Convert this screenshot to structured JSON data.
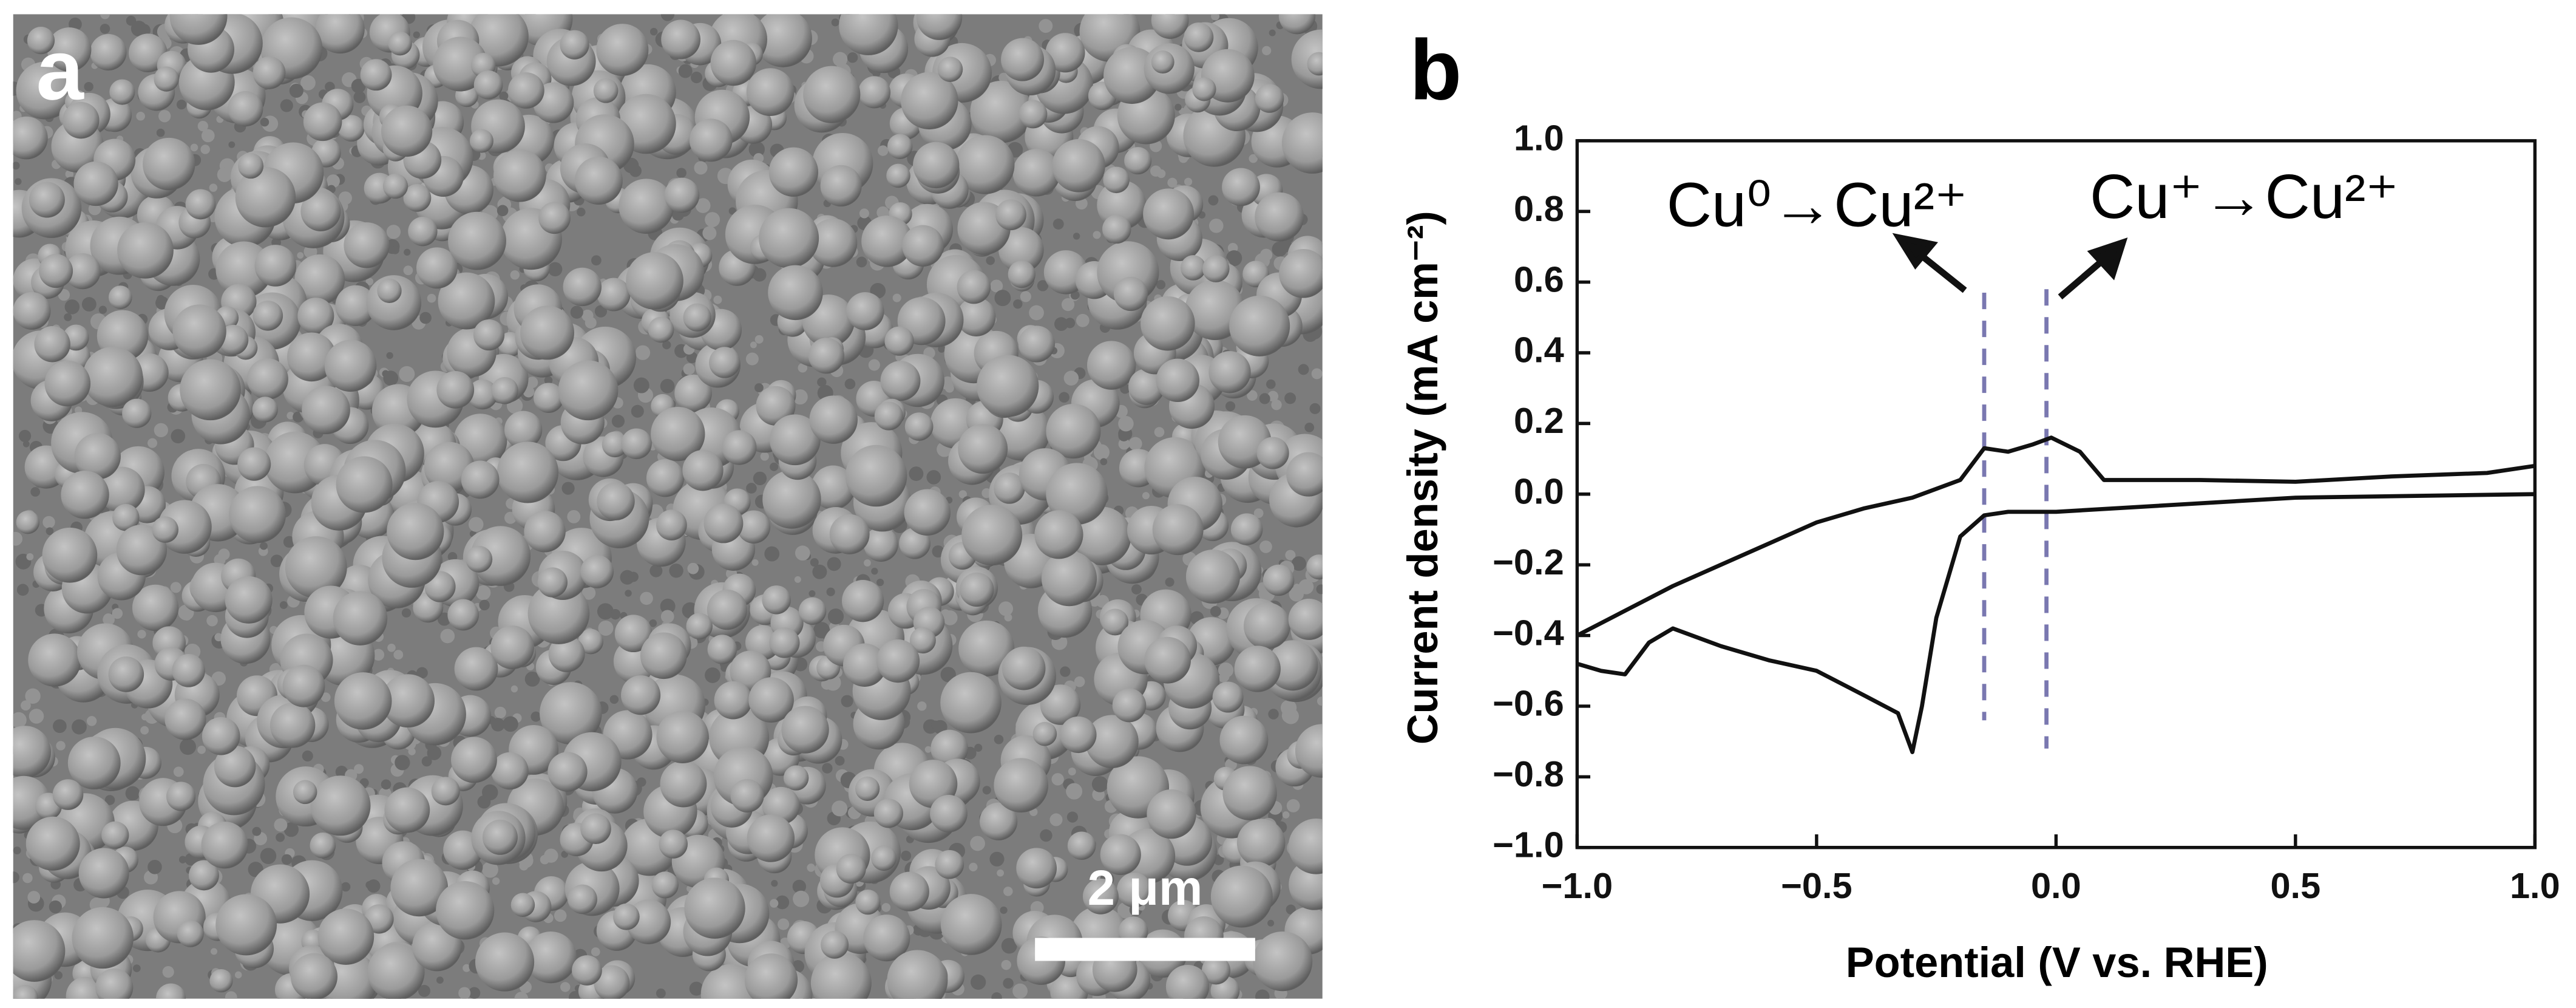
{
  "panel_a": {
    "label": "a",
    "scale_bar": "2 μm"
  },
  "chart_data": {
    "type": "line",
    "panel_label": "b",
    "xlabel": "Potential (V vs. RHE)",
    "ylabel": "Current density (mA cm⁻²)",
    "xlim": [
      -1.0,
      1.0
    ],
    "xticks": [
      {
        "value": -1.0,
        "label": "−1.0"
      },
      {
        "value": -0.5,
        "label": "−0.5"
      },
      {
        "value": 0.0,
        "label": "0.0"
      },
      0.5,
      {
        "value": 1.0,
        "label": "1.0"
      }
    ],
    "ylim": [
      -1.0,
      1.0
    ],
    "yticks": [
      {
        "value": -1.0,
        "label": "−1.0"
      },
      {
        "value": -0.8,
        "label": "−0.8"
      },
      {
        "value": -0.6,
        "label": "−0.6"
      },
      {
        "value": -0.4,
        "label": "−0.4"
      },
      {
        "value": -0.2,
        "label": "−0.2"
      },
      {
        "value": 0.0,
        "label": "0.0"
      },
      0.2,
      0.4,
      0.6,
      0.8,
      {
        "value": 1.0,
        "label": "1.0"
      }
    ],
    "series": [
      {
        "color": "#111111",
        "x": [
          -1.0,
          -0.9,
          -0.8,
          -0.7,
          -0.6,
          -0.5,
          -0.4,
          -0.3,
          -0.2,
          -0.15,
          -0.1,
          -0.05,
          -0.01,
          0.05,
          0.1,
          0.2,
          0.3,
          0.5,
          0.7,
          0.9,
          1.0
        ],
        "values": [
          -0.4,
          -0.33,
          -0.26,
          -0.2,
          -0.14,
          -0.08,
          -0.04,
          -0.01,
          0.04,
          0.13,
          0.12,
          0.14,
          0.16,
          0.12,
          0.04,
          0.04,
          0.04,
          0.035,
          0.05,
          0.06,
          0.08
        ]
      },
      {
        "color": "#111111",
        "x": [
          1.0,
          0.5,
          0.0,
          -0.1,
          -0.15,
          -0.2,
          -0.25,
          -0.28,
          -0.3,
          -0.33,
          -0.4,
          -0.5,
          -0.6,
          -0.7,
          -0.8,
          -0.85,
          -0.9,
          -0.95,
          -1.0
        ],
        "values": [
          0.0,
          -0.01,
          -0.05,
          -0.05,
          -0.06,
          -0.12,
          -0.35,
          -0.6,
          -0.73,
          -0.62,
          -0.57,
          -0.5,
          -0.47,
          -0.43,
          -0.38,
          -0.42,
          -0.51,
          -0.5,
          -0.48
        ]
      }
    ],
    "vlines": [
      {
        "x": -0.15,
        "y": [
          0.57,
          -0.64
        ]
      },
      {
        "x": -0.02,
        "y": [
          0.58,
          -0.72
        ]
      }
    ],
    "annotations": [
      "Cu⁰→Cu²⁺",
      "Cu⁺→Cu²⁺"
    ]
  }
}
